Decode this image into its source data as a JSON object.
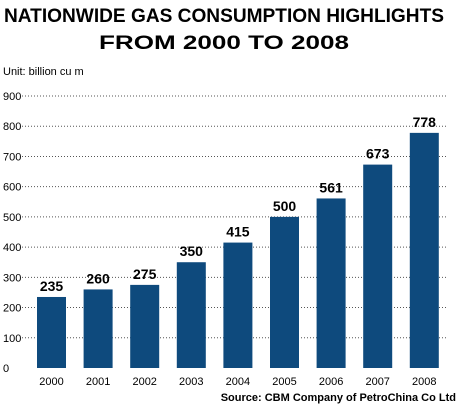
{
  "chart_data": {
    "type": "bar",
    "title": "NATIONWIDE GAS CONSUMPTION HIGHLIGHTS",
    "subtitle": "FROM 2000 TO 2008",
    "unit_label": "Unit: billion cu m",
    "source": "Source: CBM Company of  PetroChina Co Ltd",
    "categories": [
      "2000",
      "2001",
      "2002",
      "2003",
      "2004",
      "2005",
      "2006",
      "2007",
      "2008"
    ],
    "values": [
      235,
      260,
      275,
      350,
      415,
      500,
      561,
      673,
      778
    ],
    "data_labels": [
      "235",
      "260",
      "275",
      "350",
      "415",
      "500",
      "561",
      "673",
      "778"
    ],
    "y_ticks": [
      0,
      100,
      200,
      300,
      400,
      500,
      600,
      700,
      800,
      900
    ],
    "ylim": [
      0,
      900
    ],
    "xlabel": "",
    "ylabel": "",
    "grid": true,
    "grid_style": "dotted",
    "bar_color": "#0e4a7d",
    "text_color": "#000000",
    "grid_color": "#555555"
  }
}
